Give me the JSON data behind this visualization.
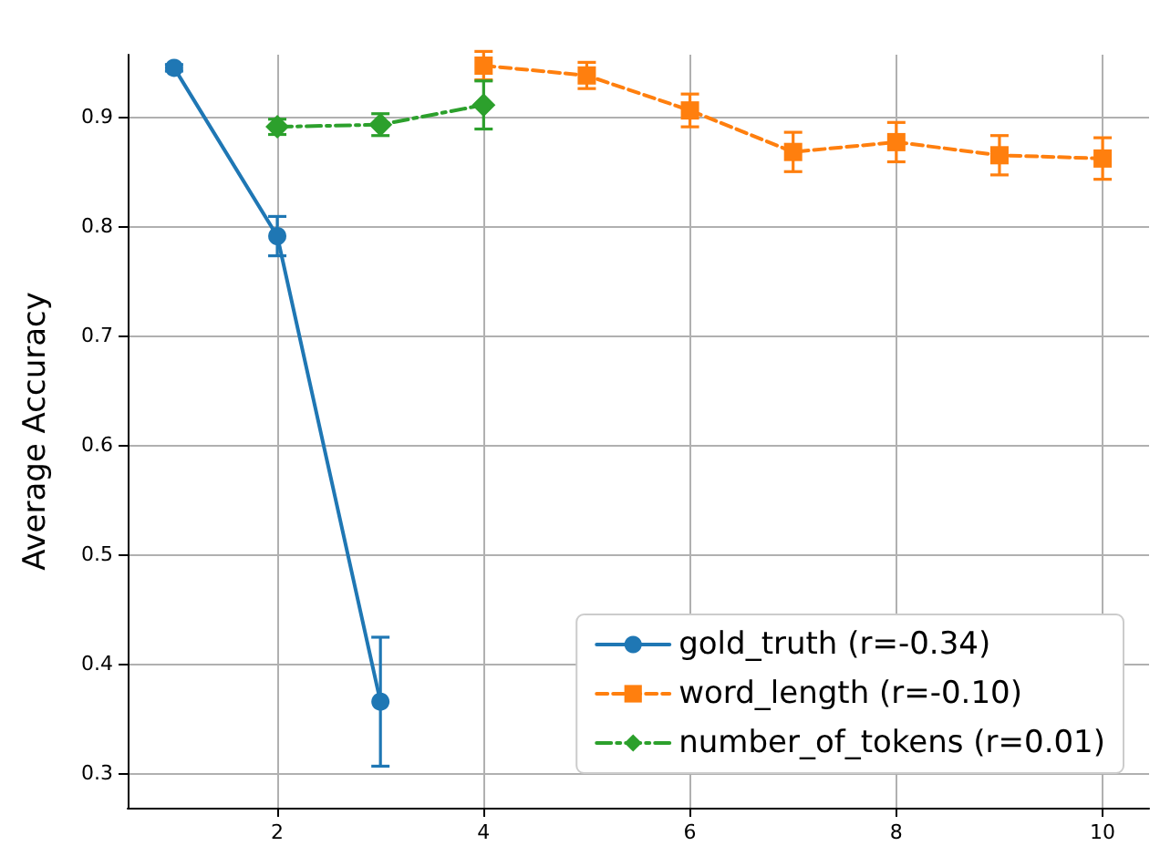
{
  "chart_data": {
    "type": "line",
    "ylabel": "Average Accuracy",
    "xlim": [
      0.55,
      10.45
    ],
    "xticks": [
      2,
      4,
      6,
      8,
      10
    ],
    "ylim": [
      0.268,
      0.957
    ],
    "yticks": [
      0.3,
      0.4,
      0.5,
      0.6,
      0.7,
      0.8,
      0.9
    ],
    "grid": true,
    "legend": "bottom right",
    "series": [
      {
        "name": "gold_truth (r=-0.34)",
        "color": "#1f77b4",
        "marker": "circle",
        "line_style": "solid",
        "x": [
          1,
          2,
          3
        ],
        "values": [
          0.945,
          0.791,
          0.365
        ],
        "errors": [
          0.003,
          0.018,
          0.059
        ]
      },
      {
        "name": "word_length (r=-0.10)",
        "color": "#ff7f0e",
        "marker": "square",
        "line_style": "dashed",
        "x": [
          4,
          5,
          6,
          7,
          8,
          9,
          10
        ],
        "values": [
          0.947,
          0.938,
          0.906,
          0.868,
          0.877,
          0.865,
          0.862
        ],
        "errors": [
          0.013,
          0.012,
          0.015,
          0.018,
          0.018,
          0.018,
          0.019
        ]
      },
      {
        "name": "number_of_tokens (r=0.01)",
        "color": "#2ca02c",
        "marker": "diamond",
        "line_style": "dashdot",
        "x": [
          2,
          3,
          4
        ],
        "values": [
          0.891,
          0.893,
          0.911
        ],
        "errors": [
          0.007,
          0.01,
          0.022
        ]
      }
    ]
  }
}
